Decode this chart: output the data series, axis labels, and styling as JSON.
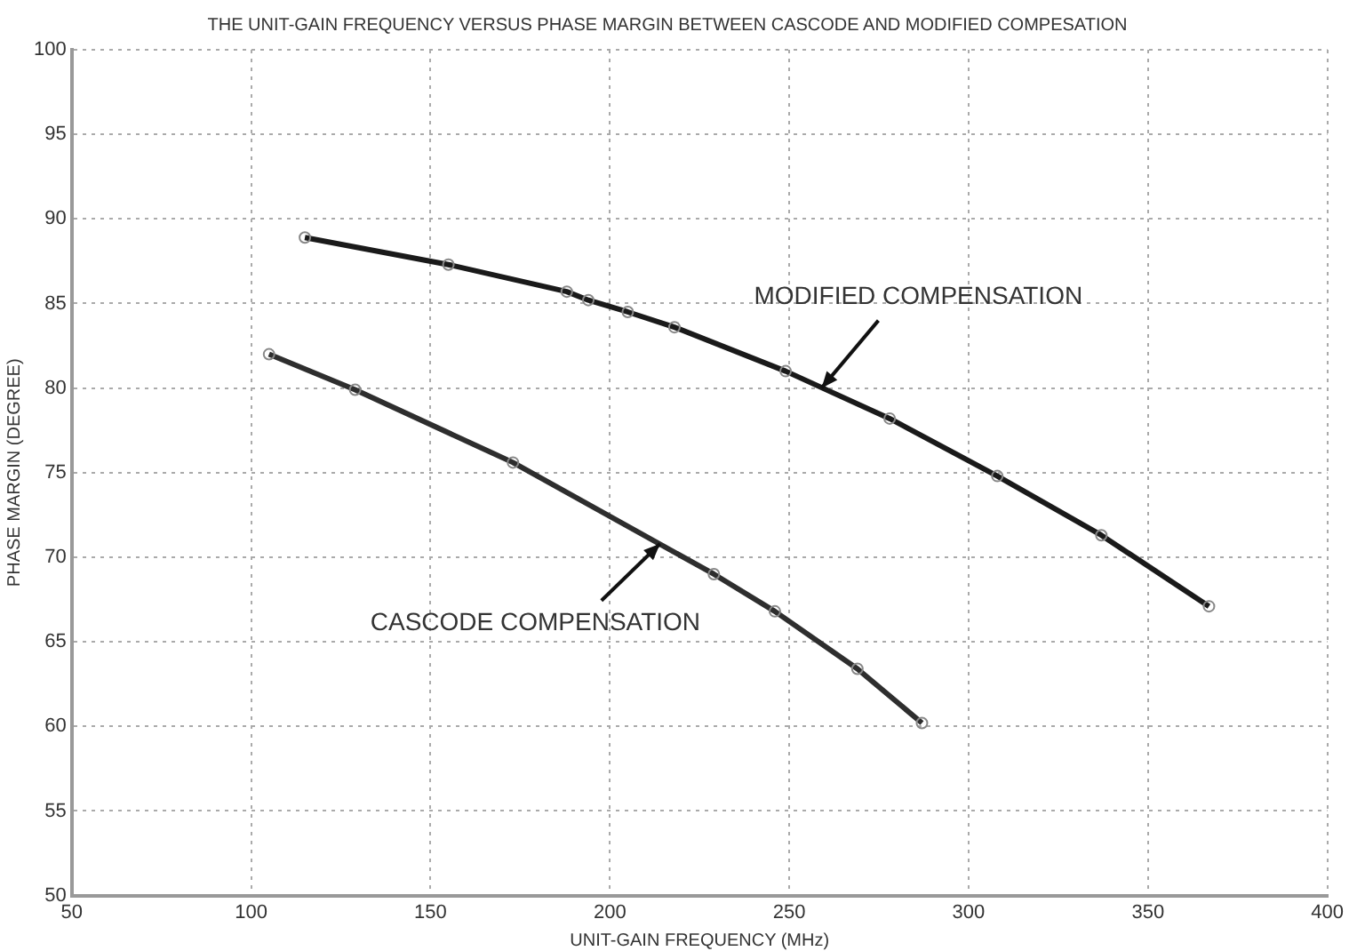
{
  "chart_data": {
    "type": "line",
    "title": "THE UNIT-GAIN FREQUENCY VERSUS PHASE MARGIN BETWEEN CASCODE AND MODIFIED COMPESATION",
    "xlabel": "UNIT-GAIN FREQUENCY (MHz)",
    "ylabel": "PHASE MARGIN (DEGREE)",
    "series": [
      {
        "color": "#1a1a1a",
        "x": [
          115,
          155,
          188,
          194,
          205,
          218,
          249,
          278,
          308,
          337,
          367
        ],
        "values": [
          88.9,
          87.3,
          85.7,
          85.2,
          84.5,
          83.6,
          81,
          78.2,
          74.8,
          71.3,
          67.1
        ]
      },
      {
        "color": "#2e2e2e",
        "x": [
          105,
          129,
          173,
          229,
          246,
          269,
          287
        ],
        "values": [
          82,
          79.9,
          75.6,
          69,
          66.8,
          63.4,
          60.2
        ]
      }
    ],
    "annotations": [
      {
        "text": "MODIFIED COMPENSATION",
        "x": 259,
        "y": 80
      },
      {
        "text": "CASCODE COMPENSATION",
        "x": 214,
        "y": 70.8
      }
    ],
    "xlim": [
      50,
      400
    ],
    "xticks": [
      50,
      100,
      150,
      200,
      250,
      300,
      350,
      400
    ],
    "ylim": [
      50,
      100
    ],
    "yticks": [
      50,
      55,
      60,
      65,
      70,
      75,
      80,
      85,
      90,
      95,
      100
    ],
    "grid": true,
    "legend": false,
    "marker": "circle",
    "line_style": "solid"
  }
}
